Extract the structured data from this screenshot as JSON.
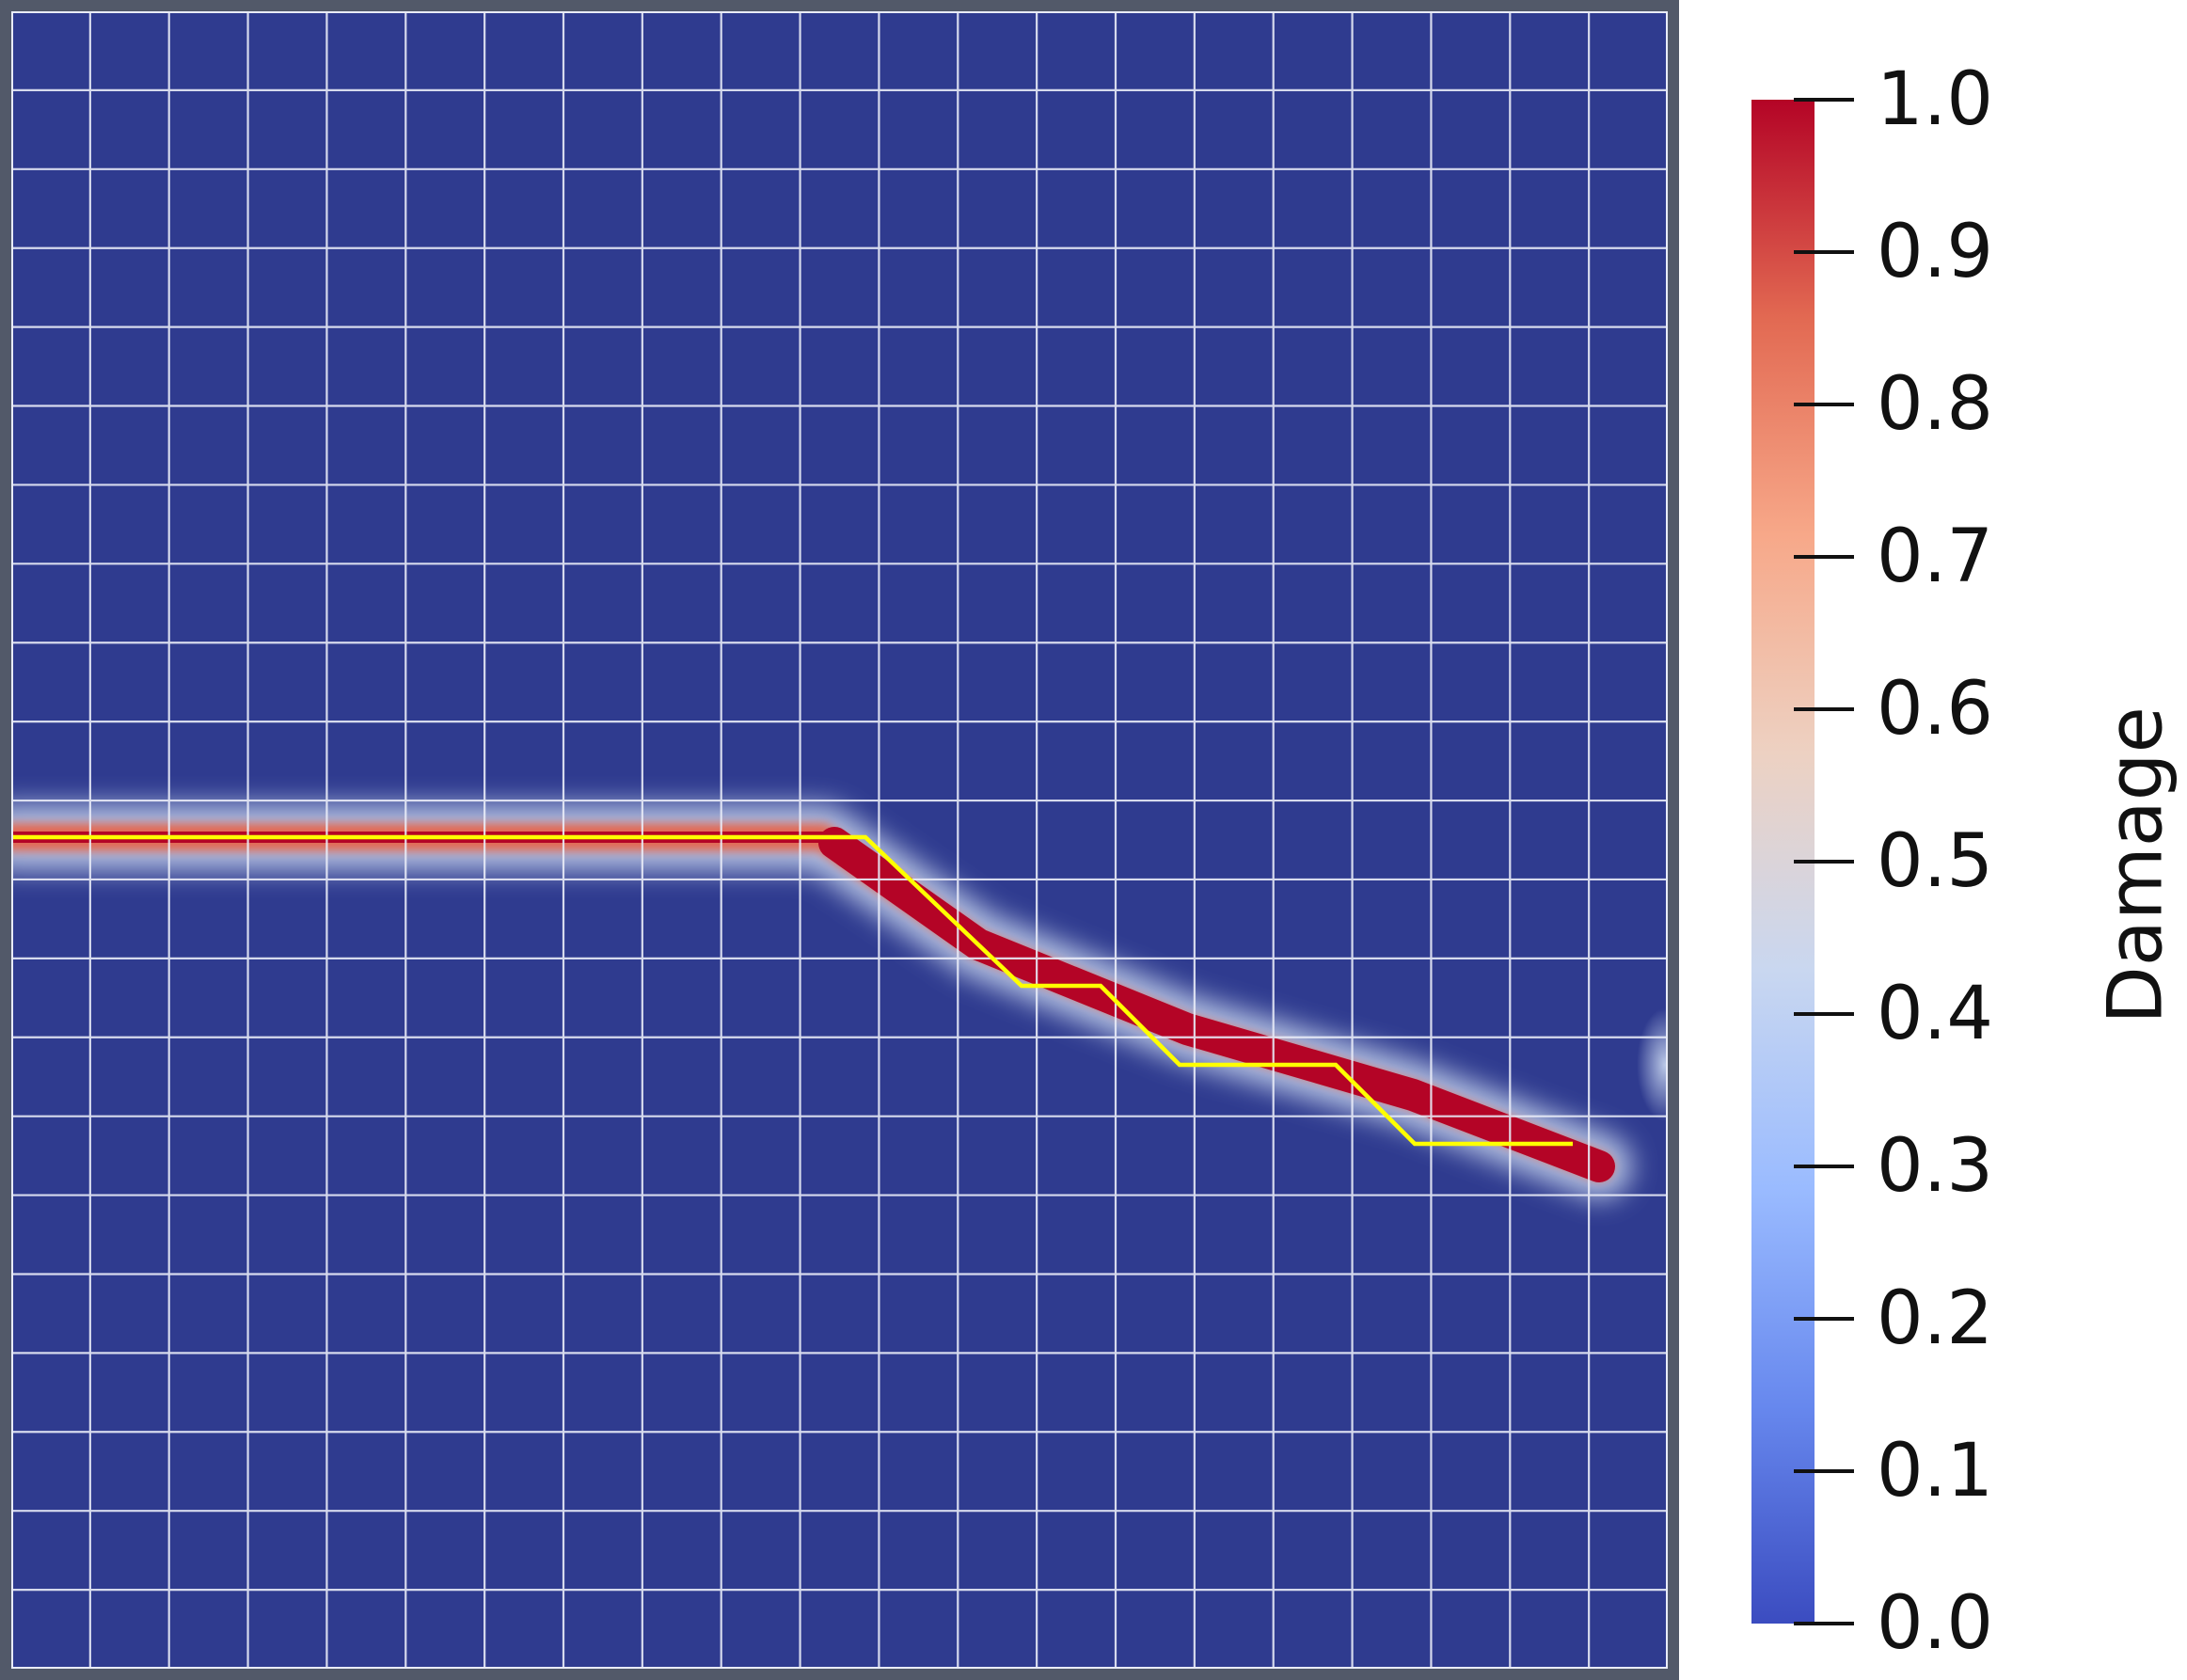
{
  "colorbar": {
    "title": "Damage",
    "ticks": [
      "1.0",
      "0.9",
      "0.8",
      "0.7",
      "0.6",
      "0.5",
      "0.4",
      "0.3",
      "0.2",
      "0.1",
      "0.0"
    ],
    "colormap": [
      "#3b4cc0",
      "#6788ee",
      "#9abbff",
      "#c9d7f0",
      "#edd1c2",
      "#f7a889",
      "#e26952",
      "#b40426"
    ]
  },
  "scene": {
    "background_color": "#2f3b8f",
    "frame_color": "#525969",
    "mesh_color": "#e9ecf8",
    "crack_path_color": "#ffff00",
    "mesh_divisions": 21
  }
}
